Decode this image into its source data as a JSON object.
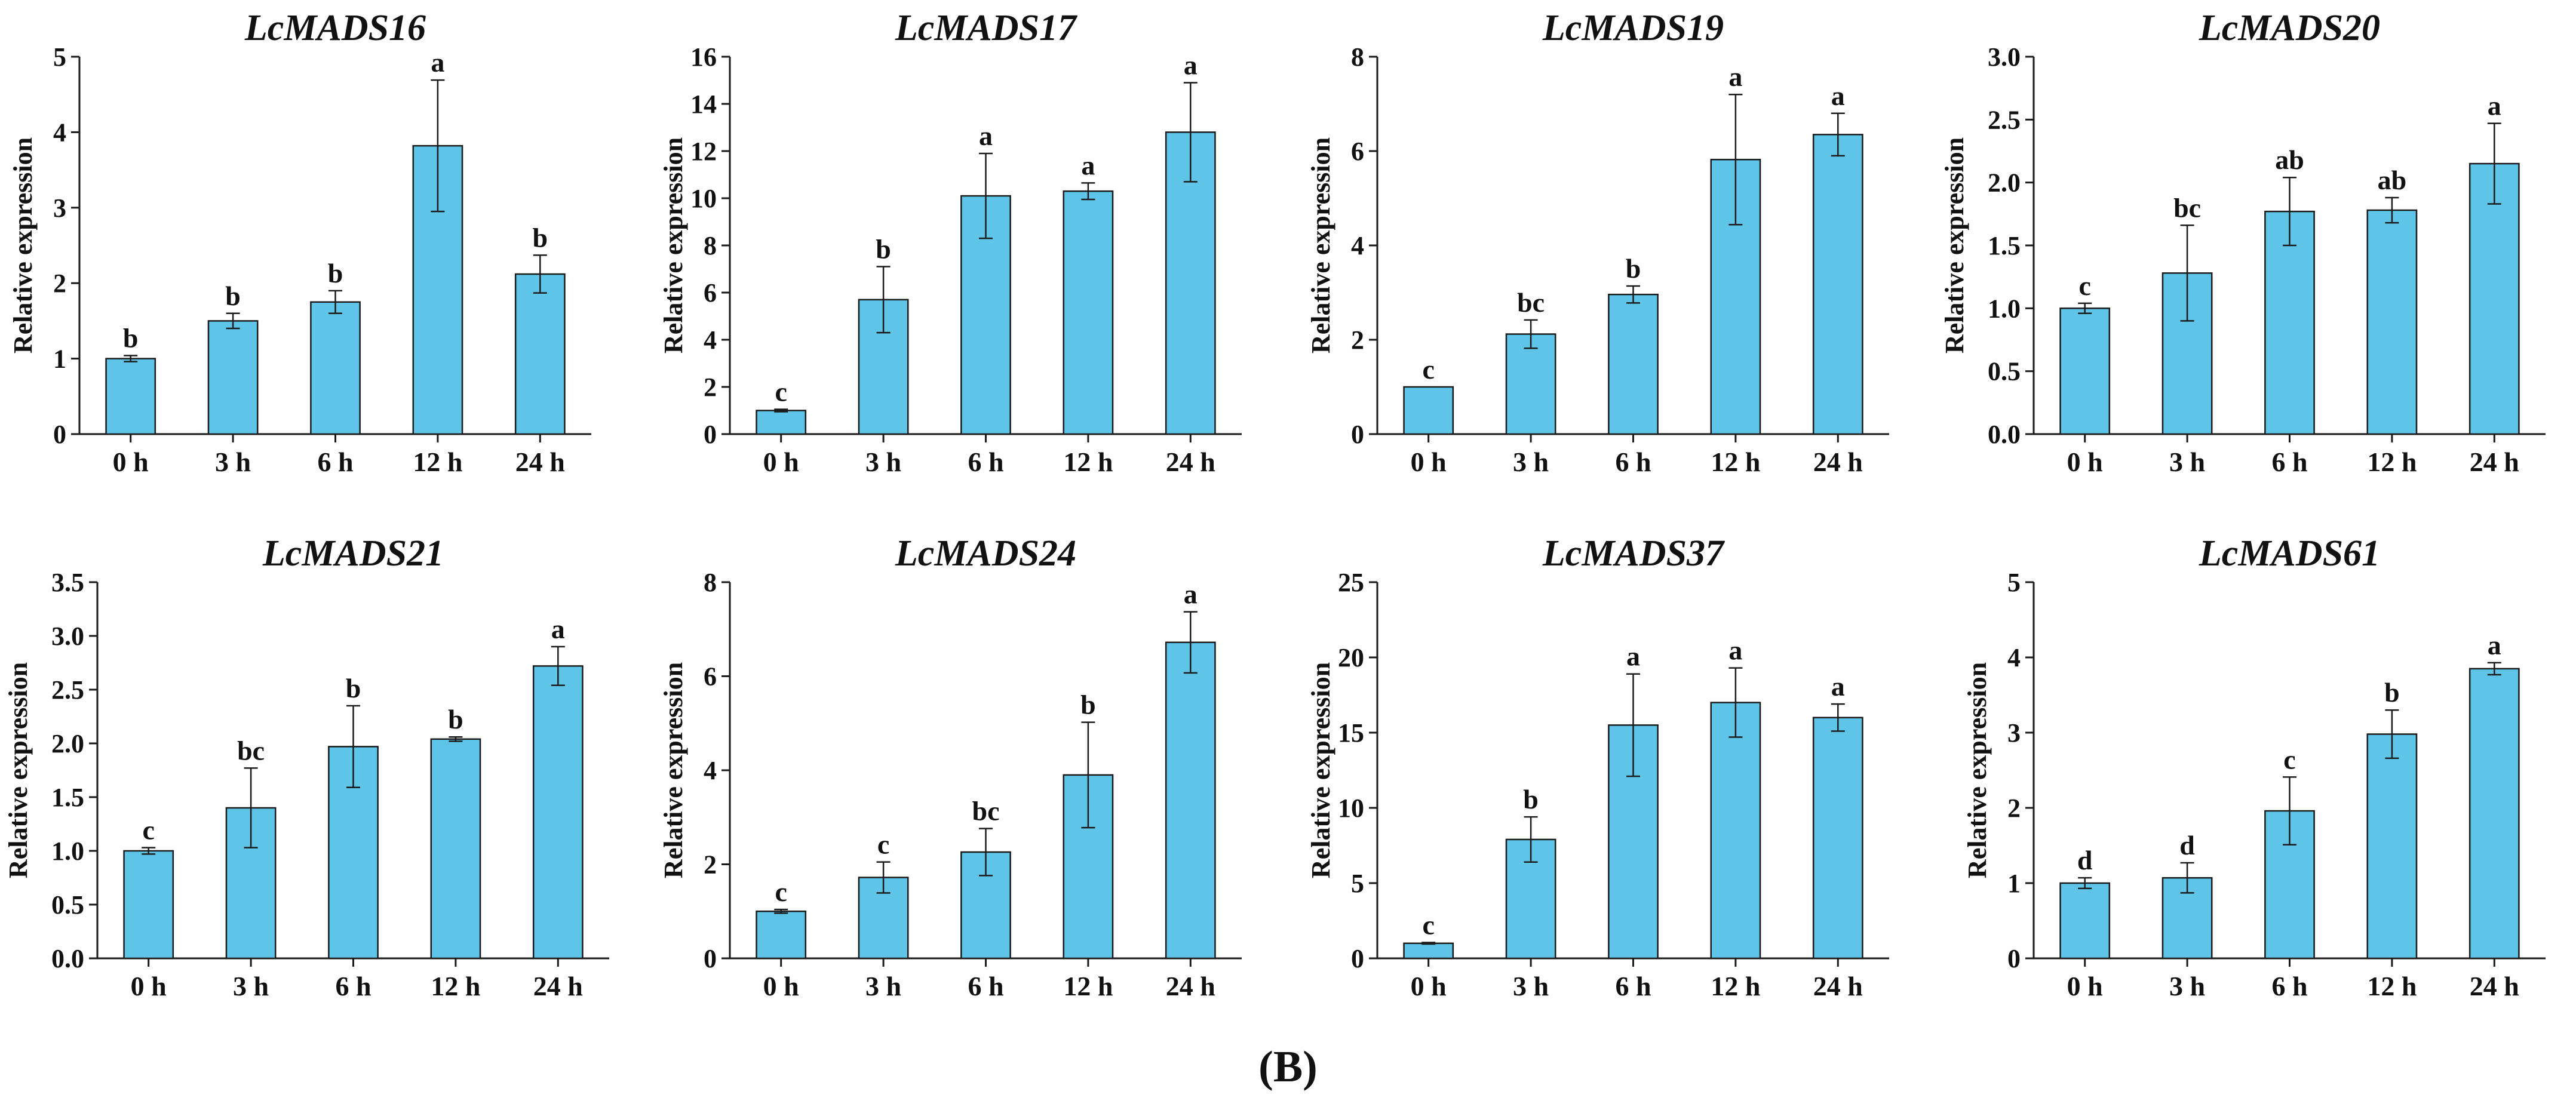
{
  "panel_label": "(B)",
  "colors": {
    "bar_fill": "#5EC4E8",
    "bar_stroke": "#1a1a1a",
    "axis": "#1a1a1a",
    "text": "#111111"
  },
  "chart_data": [
    {
      "type": "bar",
      "title": "LcMADS16",
      "ylabel": "Relative expression",
      "categories": [
        "0 h",
        "3 h",
        "6 h",
        "12 h",
        "24 h"
      ],
      "values": [
        1.0,
        1.5,
        1.75,
        3.82,
        2.12
      ],
      "errors": [
        0.04,
        0.1,
        0.15,
        0.87,
        0.25
      ],
      "letters": [
        "b",
        "b",
        "b",
        "a",
        "b"
      ],
      "ylim": [
        0,
        5
      ],
      "yticks": [
        "0",
        "1",
        "2",
        "3",
        "4",
        "5"
      ]
    },
    {
      "type": "bar",
      "title": "LcMADS17",
      "ylabel": "Relative expression",
      "categories": [
        "0 h",
        "3 h",
        "6 h",
        "12 h",
        "24 h"
      ],
      "values": [
        1.0,
        5.7,
        10.1,
        10.3,
        12.8
      ],
      "errors": [
        0.05,
        1.4,
        1.8,
        0.35,
        2.1
      ],
      "letters": [
        "c",
        "b",
        "a",
        "a",
        "a"
      ],
      "ylim": [
        0,
        16
      ],
      "yticks": [
        "0",
        "2",
        "4",
        "6",
        "8",
        "10",
        "12",
        "14",
        "16"
      ]
    },
    {
      "type": "bar",
      "title": "LcMADS19",
      "ylabel": "Relative expression",
      "categories": [
        "0 h",
        "3 h",
        "6 h",
        "12 h",
        "24 h"
      ],
      "values": [
        1.0,
        2.12,
        2.96,
        5.82,
        6.35
      ],
      "errors": [
        0.0,
        0.3,
        0.18,
        1.38,
        0.45
      ],
      "letters": [
        "c",
        "bc",
        "b",
        "a",
        "a"
      ],
      "ylim": [
        0,
        8
      ],
      "yticks": [
        "0",
        "2",
        "4",
        "6",
        "8"
      ]
    },
    {
      "type": "bar",
      "title": "LcMADS20",
      "ylabel": "Relative expression",
      "categories": [
        "0 h",
        "3 h",
        "6 h",
        "12 h",
        "24 h"
      ],
      "values": [
        1.0,
        1.28,
        1.77,
        1.78,
        2.15
      ],
      "errors": [
        0.04,
        0.38,
        0.27,
        0.1,
        0.32
      ],
      "letters": [
        "c",
        "bc",
        "ab",
        "ab",
        "a"
      ],
      "ylim": [
        0,
        3.0
      ],
      "yticks": [
        "0.0",
        "0.5",
        "1.0",
        "1.5",
        "2.0",
        "2.5",
        "3.0"
      ]
    },
    {
      "type": "bar",
      "title": "LcMADS21",
      "ylabel": "Relative expression",
      "categories": [
        "0 h",
        "3 h",
        "6 h",
        "12 h",
        "24 h"
      ],
      "values": [
        1.0,
        1.4,
        1.97,
        2.04,
        2.72
      ],
      "errors": [
        0.03,
        0.37,
        0.38,
        0.02,
        0.18
      ],
      "letters": [
        "c",
        "bc",
        "b",
        "b",
        "a"
      ],
      "ylim": [
        0,
        3.5
      ],
      "yticks": [
        "0.0",
        "0.5",
        "1.0",
        "1.5",
        "2.0",
        "2.5",
        "3.0",
        "3.5"
      ]
    },
    {
      "type": "bar",
      "title": "LcMADS24",
      "ylabel": "Relative expression",
      "categories": [
        "0 h",
        "3 h",
        "6 h",
        "12 h",
        "24 h"
      ],
      "values": [
        1.0,
        1.72,
        2.26,
        3.9,
        6.72
      ],
      "errors": [
        0.04,
        0.33,
        0.5,
        1.12,
        0.65
      ],
      "letters": [
        "c",
        "c",
        "bc",
        "b",
        "a"
      ],
      "ylim": [
        0,
        8
      ],
      "yticks": [
        "0",
        "2",
        "4",
        "6",
        "8"
      ]
    },
    {
      "type": "bar",
      "title": "LcMADS37",
      "ylabel": "Relative expression",
      "categories": [
        "0 h",
        "3 h",
        "6 h",
        "12 h",
        "24 h"
      ],
      "values": [
        1.0,
        7.9,
        15.5,
        17.0,
        16.0
      ],
      "errors": [
        0.05,
        1.5,
        3.4,
        2.3,
        0.9
      ],
      "letters": [
        "c",
        "b",
        "a",
        "a",
        "a"
      ],
      "ylim": [
        0,
        25
      ],
      "yticks": [
        "0",
        "5",
        "10",
        "15",
        "20",
        "25"
      ]
    },
    {
      "type": "bar",
      "title": "LcMADS61",
      "ylabel": "Relative expression",
      "categories": [
        "0 h",
        "3 h",
        "6 h",
        "12 h",
        "24 h"
      ],
      "values": [
        1.0,
        1.07,
        1.96,
        2.98,
        3.85
      ],
      "errors": [
        0.07,
        0.2,
        0.45,
        0.32,
        0.08
      ],
      "letters": [
        "d",
        "d",
        "c",
        "b",
        "a"
      ],
      "ylim": [
        0,
        5
      ],
      "yticks": [
        "0",
        "1",
        "2",
        "3",
        "4",
        "5"
      ]
    }
  ]
}
